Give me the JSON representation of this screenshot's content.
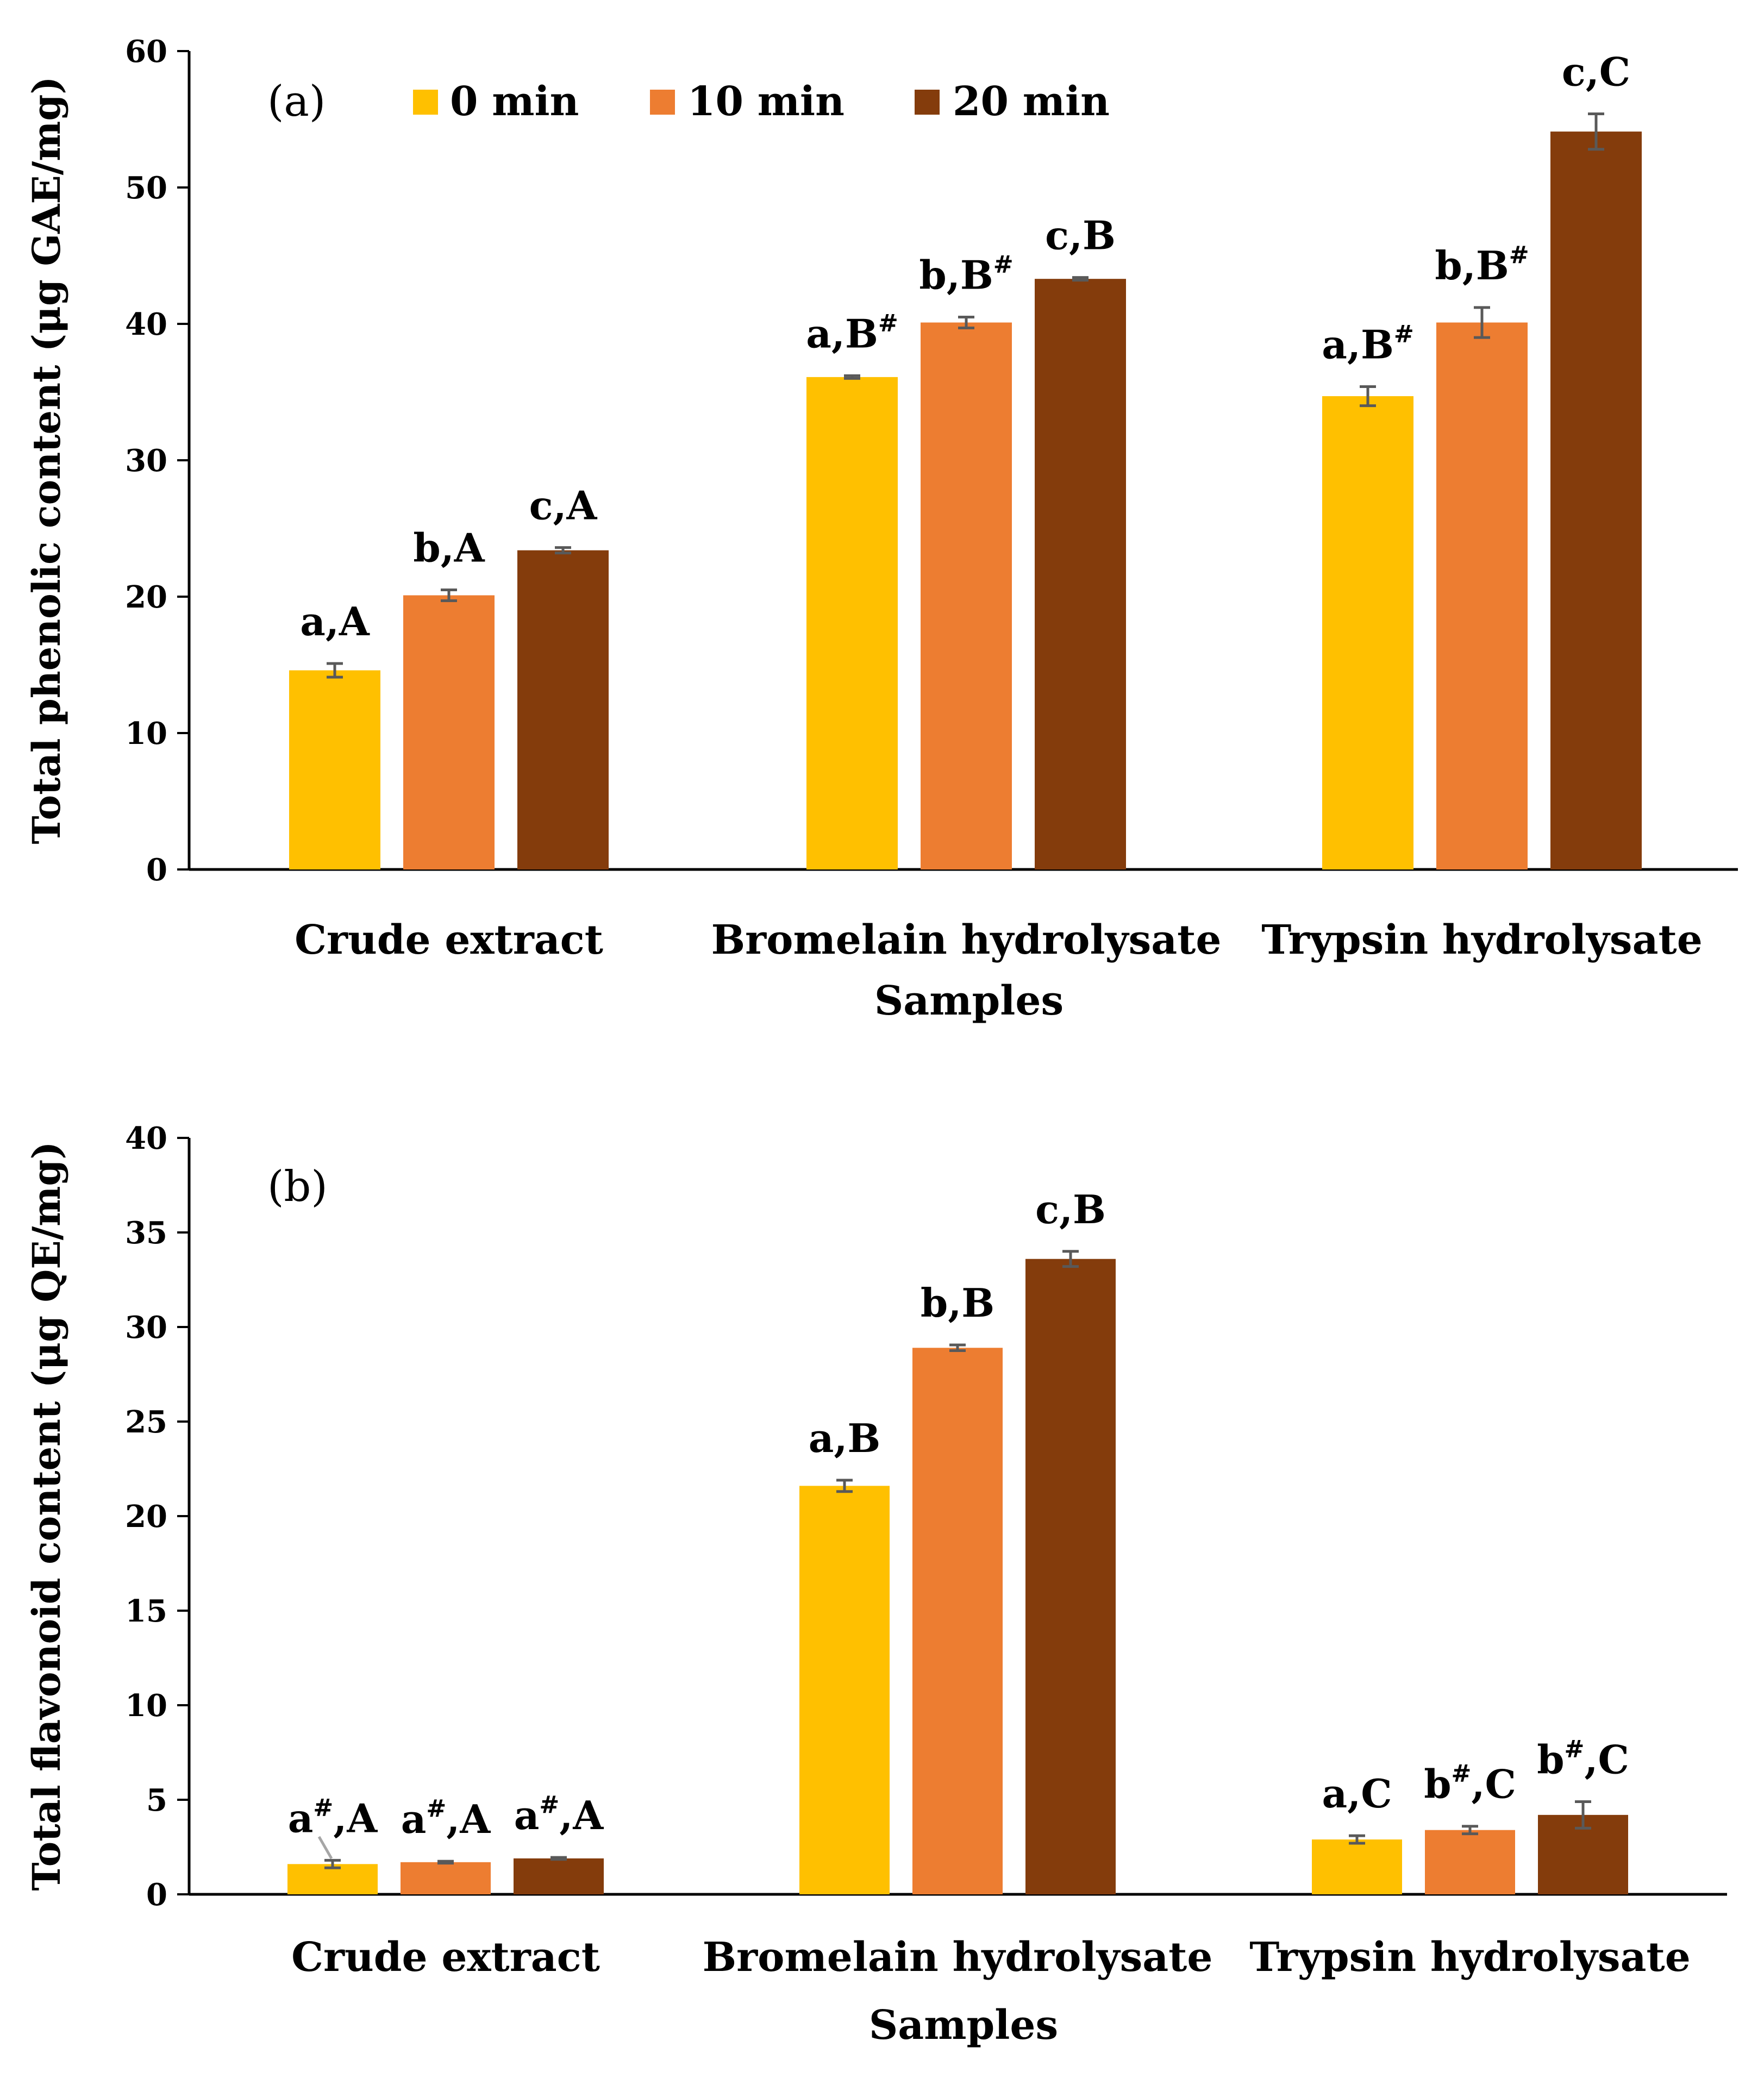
{
  "colors": {
    "0 min": "#FFC000",
    "10 min": "#ED7D31",
    "20 min": "#843C0C",
    "axis": "#000000",
    "errorbar": "#595959",
    "leader": "#A6A6A6"
  },
  "chart_data": [
    {
      "type": "bar",
      "panel_label": "(a)",
      "ylabel": "Total phenolic content (μg GAE/mg)",
      "xlabel": "Samples",
      "categories": [
        "Crude extract",
        "Bromelain hydrolysate",
        "Trypsin hydrolysate"
      ],
      "ylim": [
        0,
        60
      ],
      "yticks": [
        0,
        10,
        20,
        30,
        40,
        50,
        60
      ],
      "grid": false,
      "legend_position": "top",
      "series": [
        {
          "name": "0 min",
          "values": [
            14.6,
            36.1,
            34.7
          ],
          "errors": [
            0.5,
            0.1,
            0.7
          ],
          "labels": [
            {
              "base": "a,A",
              "sup": ""
            },
            {
              "base": "a,B",
              "sup": "#"
            },
            {
              "base": "a,B",
              "sup": "#"
            }
          ]
        },
        {
          "name": "10 min",
          "values": [
            20.1,
            40.1,
            40.1
          ],
          "errors": [
            0.4,
            0.4,
            1.1
          ],
          "labels": [
            {
              "base": "b,A",
              "sup": ""
            },
            {
              "base": "b,B",
              "sup": "#"
            },
            {
              "base": "b,B",
              "sup": "#"
            }
          ]
        },
        {
          "name": "20 min",
          "values": [
            23.4,
            43.3,
            54.1
          ],
          "errors": [
            0.2,
            0.1,
            1.3
          ],
          "labels": [
            {
              "base": "c,A",
              "sup": ""
            },
            {
              "base": "c,B",
              "sup": ""
            },
            {
              "base": "c,C",
              "sup": ""
            }
          ]
        }
      ]
    },
    {
      "type": "bar",
      "panel_label": "(b)",
      "ylabel": "Total flavonoid content (μg QE/mg)",
      "xlabel": "Samples",
      "categories": [
        "Crude extract",
        "Bromelain hydrolysate",
        "Trypsin hydrolysate"
      ],
      "ylim": [
        0,
        40
      ],
      "yticks": [
        0,
        5,
        10,
        15,
        20,
        25,
        30,
        35,
        40
      ],
      "grid": false,
      "series": [
        {
          "name": "0 min",
          "values": [
            1.6,
            21.6,
            2.9
          ],
          "errors": [
            0.2,
            0.3,
            0.2
          ],
          "labels": [
            {
              "base": "a",
              "sup": "#",
              "rest": ",A"
            },
            {
              "base": "a,B",
              "sup": ""
            },
            {
              "base": "a,C",
              "sup": ""
            }
          ]
        },
        {
          "name": "10 min",
          "values": [
            1.7,
            28.9,
            3.4
          ],
          "errors": [
            0.05,
            0.15,
            0.2
          ],
          "labels": [
            {
              "base": "a",
              "sup": "#",
              "rest": ",A"
            },
            {
              "base": "b,B",
              "sup": ""
            },
            {
              "base": "b",
              "sup": "#",
              "rest": ",C"
            }
          ]
        },
        {
          "name": "20 min",
          "values": [
            1.9,
            33.6,
            4.2
          ],
          "errors": [
            0.05,
            0.4,
            0.7
          ],
          "labels": [
            {
              "base": "a",
              "sup": "#",
              "rest": ",A"
            },
            {
              "base": "c,B",
              "sup": ""
            },
            {
              "base": "b",
              "sup": "#",
              "rest": ",C"
            }
          ]
        }
      ]
    }
  ]
}
